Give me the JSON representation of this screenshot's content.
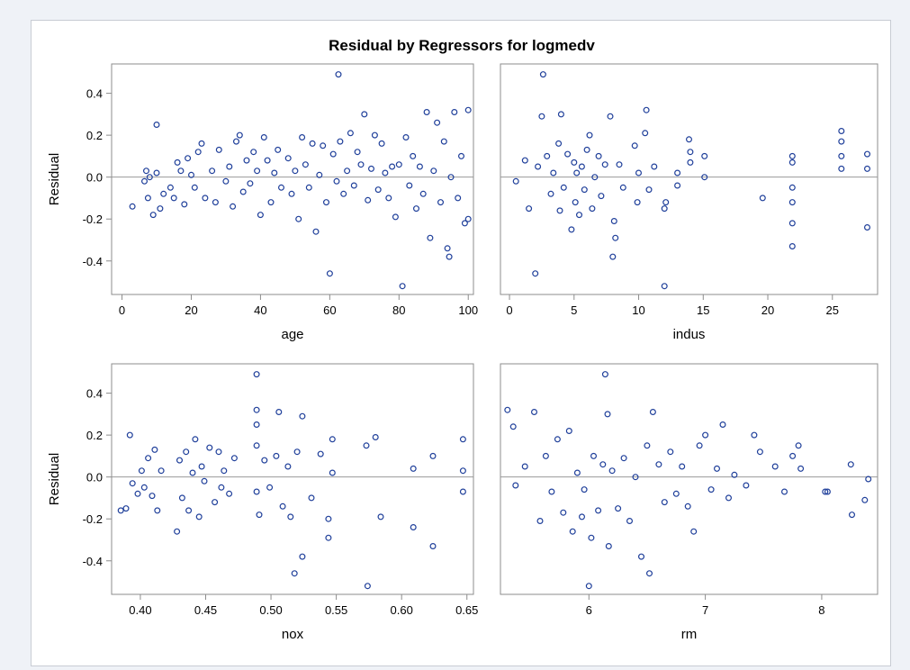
{
  "colors": {
    "page_bg": "#eff2f7",
    "frame": "#8c8c8c",
    "marker": "#1f3f9a",
    "reference_line": "#9a9a9a",
    "text": "#000000"
  },
  "chart_data": {
    "type": "scatter",
    "title": "Residual by Regressors for logmedv",
    "layout": "2x2 panel",
    "marker": "open-circle",
    "reference_line_y": 0,
    "grid": false,
    "ylabel": "Residual",
    "ylim": [
      -0.56,
      0.54
    ],
    "yticks": [
      0.4,
      0.2,
      0.0,
      -0.2,
      -0.4
    ],
    "ytick_labels": [
      "0.4",
      "0.2",
      "0.0",
      "-0.2",
      "-0.4"
    ],
    "panels": [
      {
        "xlabel": "age",
        "xlim": [
          -3,
          101.5
        ],
        "xticks": [
          0,
          20,
          40,
          60,
          80,
          100
        ],
        "xtick_labels": [
          "0",
          "20",
          "40",
          "60",
          "80",
          "100"
        ],
        "points": [
          [
            3,
            -0.14
          ],
          [
            6.5,
            -0.02
          ],
          [
            7,
            0.03
          ],
          [
            7.5,
            -0.1
          ],
          [
            8,
            0.0
          ],
          [
            9,
            -0.18
          ],
          [
            10,
            0.25
          ],
          [
            10,
            0.02
          ],
          [
            11,
            -0.15
          ],
          [
            12,
            -0.08
          ],
          [
            14,
            -0.05
          ],
          [
            15,
            -0.1
          ],
          [
            16,
            0.07
          ],
          [
            17,
            0.03
          ],
          [
            18,
            -0.13
          ],
          [
            19,
            0.09
          ],
          [
            20,
            0.01
          ],
          [
            21,
            -0.05
          ],
          [
            22,
            0.12
          ],
          [
            23,
            0.16
          ],
          [
            24,
            -0.1
          ],
          [
            26,
            0.03
          ],
          [
            27,
            -0.12
          ],
          [
            28,
            0.13
          ],
          [
            30,
            -0.02
          ],
          [
            31,
            0.05
          ],
          [
            32,
            -0.14
          ],
          [
            33,
            0.17
          ],
          [
            34,
            0.2
          ],
          [
            35,
            -0.07
          ],
          [
            36,
            0.08
          ],
          [
            37,
            -0.03
          ],
          [
            38,
            0.12
          ],
          [
            39,
            0.03
          ],
          [
            40,
            -0.18
          ],
          [
            41,
            0.19
          ],
          [
            42,
            0.08
          ],
          [
            43,
            -0.12
          ],
          [
            44,
            0.02
          ],
          [
            45,
            0.13
          ],
          [
            46,
            -0.05
          ],
          [
            48,
            0.09
          ],
          [
            49,
            -0.08
          ],
          [
            50,
            0.03
          ],
          [
            51,
            -0.2
          ],
          [
            52,
            0.19
          ],
          [
            53,
            0.06
          ],
          [
            54,
            -0.05
          ],
          [
            55,
            0.16
          ],
          [
            56,
            -0.26
          ],
          [
            57,
            0.01
          ],
          [
            58,
            0.15
          ],
          [
            59,
            -0.12
          ],
          [
            60,
            -0.46
          ],
          [
            61,
            0.11
          ],
          [
            62,
            -0.02
          ],
          [
            62.5,
            0.49
          ],
          [
            63,
            0.17
          ],
          [
            64,
            -0.08
          ],
          [
            65,
            0.03
          ],
          [
            66,
            0.21
          ],
          [
            67,
            -0.04
          ],
          [
            68,
            0.12
          ],
          [
            69,
            0.06
          ],
          [
            70,
            0.3
          ],
          [
            71,
            -0.11
          ],
          [
            72,
            0.04
          ],
          [
            73,
            0.2
          ],
          [
            74,
            -0.06
          ],
          [
            75,
            0.16
          ],
          [
            76,
            0.02
          ],
          [
            77,
            -0.1
          ],
          [
            78,
            0.05
          ],
          [
            79,
            -0.19
          ],
          [
            80,
            0.06
          ],
          [
            81,
            -0.52
          ],
          [
            82,
            0.19
          ],
          [
            83,
            -0.04
          ],
          [
            84,
            0.1
          ],
          [
            85,
            -0.15
          ],
          [
            86,
            0.05
          ],
          [
            87,
            -0.08
          ],
          [
            88,
            0.31
          ],
          [
            89,
            -0.29
          ],
          [
            90,
            0.03
          ],
          [
            91,
            0.26
          ],
          [
            92,
            -0.12
          ],
          [
            93,
            0.17
          ],
          [
            94,
            -0.34
          ],
          [
            94.5,
            -0.38
          ],
          [
            95,
            0.0
          ],
          [
            96,
            0.31
          ],
          [
            97,
            -0.1
          ],
          [
            98,
            0.1
          ],
          [
            99,
            -0.22
          ],
          [
            100,
            0.32
          ],
          [
            100,
            -0.2
          ]
        ]
      },
      {
        "xlabel": "indus",
        "xlim": [
          -0.7,
          28.5
        ],
        "xticks": [
          0,
          5,
          10,
          15,
          20,
          25
        ],
        "xtick_labels": [
          "0",
          "5",
          "10",
          "15",
          "20",
          "25"
        ],
        "points": [
          [
            0.5,
            -0.02
          ],
          [
            1.2,
            0.08
          ],
          [
            1.5,
            -0.15
          ],
          [
            2,
            -0.46
          ],
          [
            2.2,
            0.05
          ],
          [
            2.5,
            0.29
          ],
          [
            2.6,
            0.49
          ],
          [
            2.9,
            0.1
          ],
          [
            3.2,
            -0.08
          ],
          [
            3.4,
            0.02
          ],
          [
            3.8,
            0.16
          ],
          [
            3.9,
            -0.16
          ],
          [
            4,
            0.3
          ],
          [
            4.2,
            -0.05
          ],
          [
            4.5,
            0.11
          ],
          [
            4.8,
            -0.25
          ],
          [
            5,
            0.07
          ],
          [
            5.1,
            -0.12
          ],
          [
            5.2,
            0.02
          ],
          [
            5.4,
            -0.18
          ],
          [
            5.6,
            0.05
          ],
          [
            5.8,
            -0.06
          ],
          [
            6,
            0.13
          ],
          [
            6.2,
            0.2
          ],
          [
            6.4,
            -0.15
          ],
          [
            6.6,
            0.0
          ],
          [
            6.9,
            0.1
          ],
          [
            7.1,
            -0.09
          ],
          [
            7.4,
            0.06
          ],
          [
            7.8,
            0.29
          ],
          [
            8,
            -0.38
          ],
          [
            8.1,
            -0.21
          ],
          [
            8.2,
            -0.29
          ],
          [
            8.5,
            0.06
          ],
          [
            8.8,
            -0.05
          ],
          [
            9.7,
            0.15
          ],
          [
            9.9,
            -0.12
          ],
          [
            10,
            0.02
          ],
          [
            10.5,
            0.21
          ],
          [
            10.6,
            0.32
          ],
          [
            10.8,
            -0.06
          ],
          [
            11.2,
            0.05
          ],
          [
            12,
            -0.52
          ],
          [
            12,
            -0.15
          ],
          [
            12.1,
            -0.12
          ],
          [
            13,
            0.02
          ],
          [
            13,
            -0.04
          ],
          [
            13.9,
            0.18
          ],
          [
            14,
            0.12
          ],
          [
            14,
            0.07
          ],
          [
            15.1,
            0.1
          ],
          [
            15.1,
            0.0
          ],
          [
            19.6,
            -0.1
          ],
          [
            21.9,
            0.1
          ],
          [
            21.9,
            0.07
          ],
          [
            21.9,
            -0.05
          ],
          [
            21.9,
            -0.12
          ],
          [
            21.9,
            -0.22
          ],
          [
            21.9,
            -0.33
          ],
          [
            25.7,
            0.22
          ],
          [
            25.7,
            0.17
          ],
          [
            25.7,
            0.1
          ],
          [
            25.7,
            0.04
          ],
          [
            27.7,
            0.11
          ],
          [
            27.7,
            0.04
          ],
          [
            27.7,
            -0.24
          ]
        ]
      },
      {
        "xlabel": "nox",
        "xlim": [
          0.378,
          0.655
        ],
        "xticks": [
          0.4,
          0.45,
          0.5,
          0.55,
          0.6,
          0.65
        ],
        "xtick_labels": [
          "0.40",
          "0.45",
          "0.50",
          "0.55",
          "0.60",
          "0.65"
        ],
        "points": [
          [
            0.385,
            -0.16
          ],
          [
            0.389,
            -0.15
          ],
          [
            0.392,
            0.2
          ],
          [
            0.394,
            -0.03
          ],
          [
            0.398,
            -0.08
          ],
          [
            0.401,
            0.03
          ],
          [
            0.403,
            -0.05
          ],
          [
            0.406,
            0.09
          ],
          [
            0.409,
            -0.09
          ],
          [
            0.411,
            0.13
          ],
          [
            0.413,
            -0.16
          ],
          [
            0.416,
            0.03
          ],
          [
            0.428,
            -0.26
          ],
          [
            0.43,
            0.08
          ],
          [
            0.432,
            -0.1
          ],
          [
            0.435,
            0.12
          ],
          [
            0.437,
            -0.16
          ],
          [
            0.44,
            0.02
          ],
          [
            0.442,
            0.18
          ],
          [
            0.445,
            -0.19
          ],
          [
            0.447,
            0.05
          ],
          [
            0.449,
            -0.02
          ],
          [
            0.453,
            0.14
          ],
          [
            0.457,
            -0.12
          ],
          [
            0.46,
            0.12
          ],
          [
            0.462,
            -0.05
          ],
          [
            0.464,
            0.03
          ],
          [
            0.468,
            -0.08
          ],
          [
            0.472,
            0.09
          ],
          [
            0.489,
            0.49
          ],
          [
            0.489,
            0.32
          ],
          [
            0.489,
            0.25
          ],
          [
            0.489,
            0.15
          ],
          [
            0.489,
            -0.07
          ],
          [
            0.491,
            -0.18
          ],
          [
            0.495,
            0.08
          ],
          [
            0.499,
            -0.05
          ],
          [
            0.504,
            0.1
          ],
          [
            0.506,
            0.31
          ],
          [
            0.509,
            -0.14
          ],
          [
            0.513,
            0.05
          ],
          [
            0.515,
            -0.19
          ],
          [
            0.518,
            -0.46
          ],
          [
            0.52,
            0.12
          ],
          [
            0.524,
            -0.38
          ],
          [
            0.524,
            0.29
          ],
          [
            0.531,
            -0.1
          ],
          [
            0.538,
            0.11
          ],
          [
            0.544,
            -0.2
          ],
          [
            0.544,
            -0.29
          ],
          [
            0.547,
            0.02
          ],
          [
            0.547,
            0.18
          ],
          [
            0.573,
            0.15
          ],
          [
            0.574,
            -0.52
          ],
          [
            0.58,
            0.19
          ],
          [
            0.584,
            -0.19
          ],
          [
            0.609,
            -0.24
          ],
          [
            0.609,
            0.04
          ],
          [
            0.624,
            -0.33
          ],
          [
            0.624,
            0.1
          ],
          [
            0.647,
            0.18
          ],
          [
            0.647,
            0.03
          ],
          [
            0.647,
            -0.07
          ]
        ]
      },
      {
        "xlabel": "rm",
        "xlim": [
          5.24,
          8.48
        ],
        "xticks": [
          6,
          7,
          8
        ],
        "xtick_labels": [
          "6",
          "7",
          "8"
        ],
        "points": [
          [
            5.3,
            0.32
          ],
          [
            5.35,
            0.24
          ],
          [
            5.37,
            -0.04
          ],
          [
            5.45,
            0.05
          ],
          [
            5.53,
            0.31
          ],
          [
            5.58,
            -0.21
          ],
          [
            5.63,
            0.1
          ],
          [
            5.68,
            -0.07
          ],
          [
            5.73,
            0.18
          ],
          [
            5.78,
            -0.17
          ],
          [
            5.83,
            0.22
          ],
          [
            5.86,
            -0.26
          ],
          [
            5.9,
            0.02
          ],
          [
            5.94,
            -0.19
          ],
          [
            5.96,
            -0.06
          ],
          [
            6.0,
            -0.52
          ],
          [
            6.02,
            -0.29
          ],
          [
            6.04,
            0.1
          ],
          [
            6.08,
            -0.16
          ],
          [
            6.12,
            0.06
          ],
          [
            6.14,
            0.49
          ],
          [
            6.16,
            0.3
          ],
          [
            6.17,
            -0.33
          ],
          [
            6.2,
            0.03
          ],
          [
            6.25,
            -0.15
          ],
          [
            6.3,
            0.09
          ],
          [
            6.35,
            -0.21
          ],
          [
            6.4,
            0.0
          ],
          [
            6.45,
            -0.38
          ],
          [
            6.5,
            0.15
          ],
          [
            6.52,
            -0.46
          ],
          [
            6.55,
            0.31
          ],
          [
            6.6,
            0.06
          ],
          [
            6.65,
            -0.12
          ],
          [
            6.7,
            0.12
          ],
          [
            6.75,
            -0.08
          ],
          [
            6.8,
            0.05
          ],
          [
            6.85,
            -0.14
          ],
          [
            6.9,
            -0.26
          ],
          [
            6.95,
            0.15
          ],
          [
            7.0,
            0.2
          ],
          [
            7.05,
            -0.06
          ],
          [
            7.1,
            0.04
          ],
          [
            7.15,
            0.25
          ],
          [
            7.2,
            -0.1
          ],
          [
            7.25,
            0.01
          ],
          [
            7.35,
            -0.04
          ],
          [
            7.42,
            0.2
          ],
          [
            7.47,
            0.12
          ],
          [
            7.6,
            0.05
          ],
          [
            7.68,
            -0.07
          ],
          [
            7.75,
            0.1
          ],
          [
            7.8,
            0.15
          ],
          [
            7.82,
            0.04
          ],
          [
            8.03,
            -0.07
          ],
          [
            8.05,
            -0.07
          ],
          [
            8.26,
            -0.18
          ],
          [
            8.25,
            0.06
          ],
          [
            8.37,
            -0.11
          ],
          [
            8.4,
            -0.01
          ]
        ]
      }
    ]
  }
}
